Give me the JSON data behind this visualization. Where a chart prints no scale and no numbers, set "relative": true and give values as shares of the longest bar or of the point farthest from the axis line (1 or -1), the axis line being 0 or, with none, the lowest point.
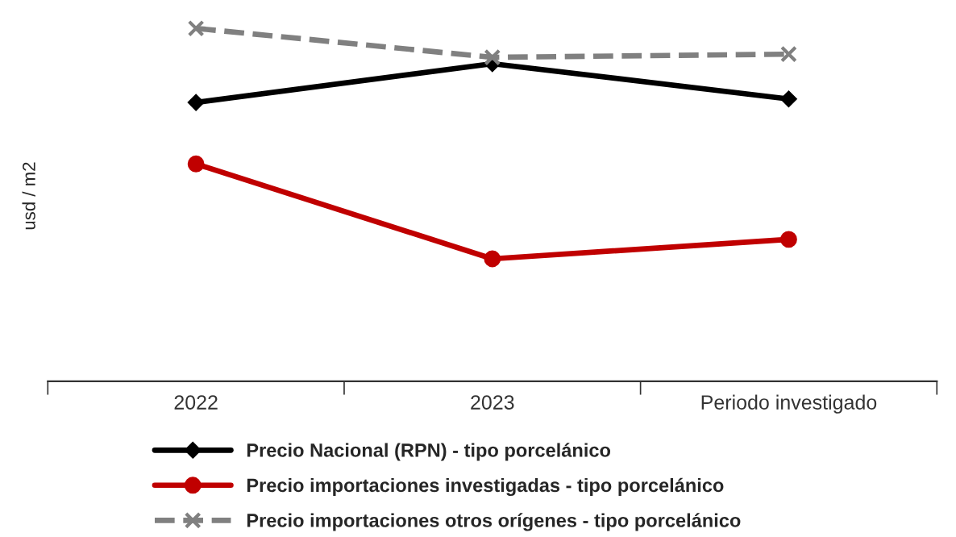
{
  "chart_data": {
    "type": "line",
    "relative": true,
    "ylabel": "usd / m2",
    "categories": [
      "2022",
      "2023",
      "Periodo investigado"
    ],
    "series": [
      {
        "name": "Precio Nacional (RPN) - tipo porcelánico",
        "color": "#000000",
        "marker": "diamond",
        "line_style": "solid",
        "values": [
          0.79,
          0.9,
          0.8
        ]
      },
      {
        "name": "Precio importaciones investigadas - tipo porcelánico",
        "color": "#c00000",
        "marker": "circle",
        "line_style": "solid",
        "values": [
          0.616,
          0.347,
          0.402
        ]
      },
      {
        "name": "Precio importaciones otros orígenes - tipo porcelánico",
        "color": "#808080",
        "marker": "cross",
        "line_style": "dashed",
        "values": [
          1,
          0.918,
          0.927
        ]
      }
    ],
    "legend": "bottom",
    "grid": false
  }
}
